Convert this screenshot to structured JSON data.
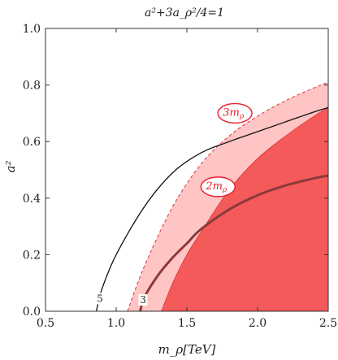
{
  "chart_data": {
    "type": "area",
    "title": "a²+3a_ρ²/4=1",
    "xlabel": "m_ρ[TeV]",
    "ylabel": "a²",
    "xlim": [
      0.5,
      2.5
    ],
    "ylim": [
      0.0,
      1.0
    ],
    "x_ticks": [
      "0.5",
      "1.0",
      "1.5",
      "2.0",
      "2.5"
    ],
    "y_ticks": [
      "0.0",
      "0.2",
      "0.4",
      "0.6",
      "0.8",
      "1.0"
    ],
    "grid": false,
    "colors": {
      "light_region": "#ffc4c4",
      "dark_region": "#f55a5a",
      "dashed_boundary": "#e0303a",
      "contour": "#111111",
      "thick_curve": "#8b3a3a",
      "label_red": "#e8202a"
    },
    "regions": [
      {
        "label": "3m_ρ",
        "lower_boundary": [
          [
            1.08,
            0.0
          ],
          [
            1.2,
            0.16
          ],
          [
            1.4,
            0.37
          ],
          [
            1.6,
            0.52
          ],
          [
            1.8,
            0.62
          ],
          [
            2.0,
            0.69
          ],
          [
            2.2,
            0.745
          ],
          [
            2.4,
            0.79
          ],
          [
            2.5,
            0.81
          ]
        ],
        "upper_boundary": [
          [
            1.32,
            0.0
          ],
          [
            1.4,
            0.1
          ],
          [
            1.5,
            0.2
          ],
          [
            1.6,
            0.28
          ],
          [
            1.8,
            0.43
          ],
          [
            2.0,
            0.54
          ],
          [
            2.2,
            0.62
          ],
          [
            2.4,
            0.69
          ],
          [
            2.5,
            0.72
          ]
        ]
      },
      {
        "label": "2m_ρ",
        "lower_boundary": [
          [
            1.32,
            0.0
          ],
          [
            1.4,
            0.1
          ],
          [
            1.5,
            0.2
          ],
          [
            1.6,
            0.28
          ],
          [
            1.8,
            0.43
          ],
          [
            2.0,
            0.54
          ],
          [
            2.2,
            0.62
          ],
          [
            2.4,
            0.69
          ],
          [
            2.5,
            0.72
          ]
        ],
        "upper_boundary": [
          [
            2.5,
            0.0
          ]
        ]
      }
    ],
    "contours": [
      {
        "label": "5",
        "points": [
          [
            0.86,
            0.0
          ],
          [
            0.9,
            0.08
          ],
          [
            1.0,
            0.2
          ],
          [
            1.2,
            0.37
          ],
          [
            1.4,
            0.49
          ],
          [
            1.6,
            0.56
          ],
          [
            1.8,
            0.6
          ],
          [
            2.0,
            0.635
          ],
          [
            2.2,
            0.67
          ],
          [
            2.4,
            0.705
          ],
          [
            2.5,
            0.72
          ]
        ]
      },
      {
        "label": "3",
        "points": [
          [
            1.17,
            0.0
          ],
          [
            1.2,
            0.05
          ],
          [
            1.3,
            0.13
          ],
          [
            1.4,
            0.19
          ],
          [
            1.5,
            0.24
          ],
          [
            1.6,
            0.29
          ],
          [
            1.8,
            0.36
          ],
          [
            2.0,
            0.41
          ],
          [
            2.2,
            0.445
          ],
          [
            2.4,
            0.47
          ],
          [
            2.5,
            0.48
          ]
        ]
      }
    ]
  }
}
